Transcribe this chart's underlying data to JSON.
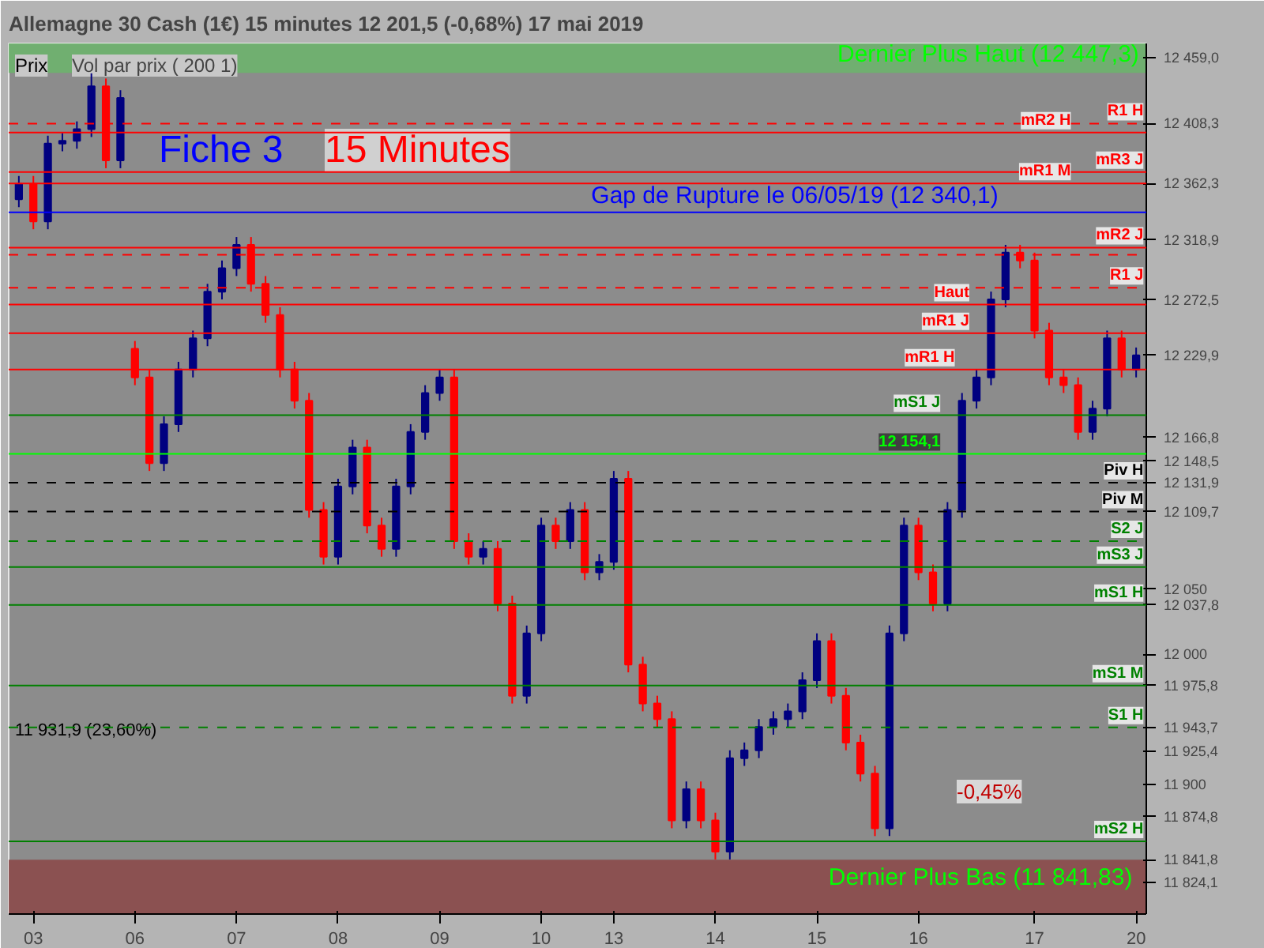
{
  "chart_data": {
    "type": "candlestick",
    "title": "Allemagne 30 Cash (1€)   15 minutes   12 201,5 (-0,68%)   17 mai 2019",
    "colors": [
      "#000080",
      "#ff0000",
      "#000080",
      "#000080",
      "#000080",
      "#000080",
      "#ff0000",
      "#000080",
      "#ff0000",
      "#ff0000",
      "#000080",
      "#000080",
      "#000080",
      "#000080",
      "#000080",
      "#000080",
      "#ff0000",
      "#ff0000",
      "#ff0000",
      "#ff0000",
      "#ff0000",
      "#ff0000",
      "#000080",
      "#000080",
      "#ff0000",
      "#ff0000",
      "#000080",
      "#000080",
      "#000080",
      "#000080",
      "#ff0000",
      "#ff0000",
      "#000080",
      "#ff0000",
      "#ff0000",
      "#000080",
      "#000080",
      "#ff0000",
      "#000080",
      "#ff0000",
      "#000080",
      "#000080",
      "#ff0000",
      "#ff0000",
      "#ff0000",
      "#ff0000",
      "#000080",
      "#ff0000",
      "#ff0000",
      "#000080",
      "#000080",
      "#000080",
      "#000080",
      "#000080",
      "#000080",
      "#000080",
      "#ff0000",
      "#ff0000",
      "#ff0000",
      "#ff0000",
      "#000080",
      "#000080",
      "#ff0000",
      "#ff0000",
      "#000080",
      "#000080",
      "#000080",
      "#000080",
      "#000080",
      "#ff0000",
      "#ff0000",
      "#ff0000",
      "#ff0000",
      "#ff0000",
      "#000080",
      "#000080",
      "#ff0000",
      "#000080"
    ],
    "categories": [
      null,
      "03",
      null,
      null,
      null,
      null,
      null,
      null,
      "06",
      null,
      null,
      null,
      null,
      null,
      null,
      "07",
      null,
      null,
      null,
      null,
      null,
      null,
      "08",
      null,
      null,
      null,
      null,
      null,
      null,
      "09",
      null,
      null,
      null,
      null,
      null,
      null,
      "10",
      null,
      null,
      null,
      null,
      "13",
      null,
      null,
      null,
      null,
      null,
      null,
      "14",
      null,
      null,
      null,
      null,
      null,
      null,
      "15",
      null,
      null,
      null,
      null,
      null,
      null,
      "16",
      null,
      null,
      null,
      null,
      null,
      null,
      null,
      "17",
      null,
      null,
      null,
      null,
      null,
      null,
      "20"
    ],
    "ohlc": [
      [
        12350,
        12368,
        12344,
        12362
      ],
      [
        12362,
        12368,
        12327,
        12333
      ],
      [
        12333,
        12399,
        12327,
        12393
      ],
      [
        12393,
        12401,
        12387,
        12395
      ],
      [
        12395,
        12410,
        12389,
        12404
      ],
      [
        12404,
        12447,
        12398,
        12437
      ],
      [
        12437,
        12443,
        12374,
        12380
      ],
      [
        12380,
        12434,
        12374,
        12428
      ],
      [
        12235,
        12241,
        12207,
        12213
      ],
      [
        12213,
        12219,
        12141,
        12147
      ],
      [
        12147,
        12183,
        12141,
        12177
      ],
      [
        12177,
        12225,
        12171,
        12219
      ],
      [
        12219,
        12249,
        12213,
        12243
      ],
      [
        12243,
        12285,
        12237,
        12279
      ],
      [
        12279,
        12303,
        12273,
        12297
      ],
      [
        12297,
        12321,
        12291,
        12315
      ],
      [
        12315,
        12321,
        12279,
        12285
      ],
      [
        12285,
        12291,
        12255,
        12261
      ],
      [
        12261,
        12267,
        12213,
        12219
      ],
      [
        12219,
        12225,
        12189,
        12195
      ],
      [
        12195,
        12201,
        12105,
        12111
      ],
      [
        12111,
        12117,
        12069,
        12075
      ],
      [
        12075,
        12135,
        12069,
        12129
      ],
      [
        12129,
        12165,
        12123,
        12159
      ],
      [
        12159,
        12165,
        12093,
        12099
      ],
      [
        12099,
        12105,
        12075,
        12081
      ],
      [
        12081,
        12135,
        12075,
        12129
      ],
      [
        12129,
        12177,
        12123,
        12171
      ],
      [
        12171,
        12207,
        12165,
        12201
      ],
      [
        12201,
        12219,
        12195,
        12213
      ],
      [
        12213,
        12219,
        12081,
        12087
      ],
      [
        12087,
        12093,
        12069,
        12075
      ],
      [
        12075,
        12087,
        12069,
        12081
      ],
      [
        12081,
        12087,
        12033,
        12039
      ],
      [
        12039,
        12045,
        11962,
        11968
      ],
      [
        11968,
        12022,
        11962,
        12016
      ],
      [
        12016,
        12105,
        12010,
        12099
      ],
      [
        12099,
        12105,
        12081,
        12087
      ],
      [
        12087,
        12117,
        12081,
        12111
      ],
      [
        12111,
        12117,
        12057,
        12063
      ],
      [
        12063,
        12077,
        12057,
        12071
      ],
      [
        12071,
        12141,
        12065,
        12135
      ],
      [
        12135,
        12141,
        11986,
        11992
      ],
      [
        11992,
        11998,
        11956,
        11962
      ],
      [
        11962,
        11968,
        11944,
        11950
      ],
      [
        11950,
        11956,
        11866,
        11872
      ],
      [
        11872,
        11902,
        11866,
        11896
      ],
      [
        11896,
        11902,
        11866,
        11872
      ],
      [
        11872,
        11878,
        11842,
        11848
      ],
      [
        11848,
        11926,
        11842,
        11920
      ],
      [
        11920,
        11932,
        11914,
        11926
      ],
      [
        11926,
        11950,
        11920,
        11944
      ],
      [
        11944,
        11956,
        11938,
        11950
      ],
      [
        11950,
        11962,
        11944,
        11956
      ],
      [
        11956,
        11986,
        11950,
        11980
      ],
      [
        11980,
        12016,
        11974,
        12010
      ],
      [
        12010,
        12016,
        11962,
        11968
      ],
      [
        11968,
        11974,
        11926,
        11932
      ],
      [
        11932,
        11938,
        11902,
        11908
      ],
      [
        11908,
        11914,
        11860,
        11866
      ],
      [
        11866,
        12022,
        11860,
        12016
      ],
      [
        12016,
        12105,
        12010,
        12099
      ],
      [
        12099,
        12105,
        12057,
        12063
      ],
      [
        12063,
        12069,
        12033,
        12039
      ],
      [
        12039,
        12117,
        12033,
        12111
      ],
      [
        12111,
        12201,
        12105,
        12195
      ],
      [
        12195,
        12219,
        12189,
        12213
      ],
      [
        12213,
        12279,
        12207,
        12273
      ],
      [
        12273,
        12315,
        12267,
        12309
      ],
      [
        12309,
        12315,
        12297,
        12303
      ],
      [
        12303,
        12309,
        12243,
        12249
      ],
      [
        12249,
        12255,
        12207,
        12213
      ],
      [
        12213,
        12219,
        12201,
        12207
      ],
      [
        12207,
        12213,
        12165,
        12171
      ],
      [
        12171,
        12195,
        12165,
        12189
      ],
      [
        12189,
        12249,
        12183,
        12243
      ],
      [
        12243,
        12249,
        12213,
        12219
      ],
      [
        12219,
        12236,
        12213,
        12230
      ]
    ],
    "ylim": [
      11800,
      12470
    ],
    "yticks": [
      {
        "value": 12459.0,
        "label": "12 459,0"
      },
      {
        "value": 12408.3,
        "label": "12 408,3"
      },
      {
        "value": 12362.3,
        "label": "12 362,3"
      },
      {
        "value": 12318.9,
        "label": "12 318,9"
      },
      {
        "value": 12272.5,
        "label": "12 272,5"
      },
      {
        "value": 12229.9,
        "label": "12 229,9"
      },
      {
        "value": 12166.8,
        "label": "12 166,8"
      },
      {
        "value": 12148.5,
        "label": "12 148,5"
      },
      {
        "value": 12131.9,
        "label": "12 131,9"
      },
      {
        "value": 12109.7,
        "label": "12 109,7"
      },
      {
        "value": 12050,
        "label": "12 050"
      },
      {
        "value": 12037.8,
        "label": "12 037,8"
      },
      {
        "value": 12000,
        "label": "12 000"
      },
      {
        "value": 11975.8,
        "label": "11 975,8"
      },
      {
        "value": 11943.7,
        "label": "11 943,7"
      },
      {
        "value": 11925.4,
        "label": "11 925,4"
      },
      {
        "value": 11900,
        "label": "11 900"
      },
      {
        "value": 11874.8,
        "label": "11 874,8"
      },
      {
        "value": 11841.8,
        "label": "11 841,8"
      },
      {
        "value": 11824.1,
        "label": "11 824,1"
      }
    ],
    "bands": [
      {
        "axis": "y",
        "from": 12447.3,
        "to": 12470,
        "label": "Dernier Plus Haut (12 447,3)",
        "color": "#6db36d"
      },
      {
        "axis": "y",
        "from": 11800,
        "to": 11841.83,
        "label": "Dernier Plus Bas  (11 841,83)",
        "color": "#8b4a4a"
      }
    ],
    "ref_lines": [
      {
        "axis": "y",
        "value": 12408.3,
        "label": "R1 H",
        "color": "#ff0000",
        "line_style": "dashed"
      },
      {
        "axis": "y",
        "value": 12401.4,
        "label": "mR2 H",
        "color": "#ff0000",
        "line_style": "solid"
      },
      {
        "axis": "y",
        "value": 12371,
        "label": "mR3 J",
        "color": "#ff0000",
        "line_style": "solid"
      },
      {
        "axis": "y",
        "value": 12362.3,
        "label": "mR1 M",
        "color": "#ff0000",
        "line_style": "solid"
      },
      {
        "axis": "y",
        "value": 12340.1,
        "label": "Gap de Rupture le 06/05/19 (12 340,1)",
        "color": "#0000ff",
        "line_style": "solid"
      },
      {
        "axis": "y",
        "value": 12312.9,
        "label": "mR2 J",
        "color": "#ff0000",
        "line_style": "solid"
      },
      {
        "axis": "y",
        "value": 12307.3,
        "label": null,
        "color": "#ff0000",
        "line_style": "dashed"
      },
      {
        "axis": "y",
        "value": 12282,
        "label": "R1 J",
        "color": "#ff0000",
        "line_style": "dashed"
      },
      {
        "axis": "y",
        "value": 12269,
        "label": "Haut",
        "color": "#ff0000",
        "line_style": "solid"
      },
      {
        "axis": "y",
        "value": 12247,
        "label": "mR1 J",
        "color": "#ff0000",
        "line_style": "solid"
      },
      {
        "axis": "y",
        "value": 12219,
        "label": "mR1 H",
        "color": "#ff0000",
        "line_style": "solid"
      },
      {
        "axis": "y",
        "value": 12184,
        "label": "mS1 J",
        "color": "#008000",
        "line_style": "solid"
      },
      {
        "axis": "y",
        "value": 12154.1,
        "label": "12 154,1",
        "color": "#00ff00",
        "line_style": "solid"
      },
      {
        "axis": "y",
        "value": 12131.9,
        "label": "Piv H",
        "color": "#000000",
        "line_style": "dashed"
      },
      {
        "axis": "y",
        "value": 12109.7,
        "label": "Piv M",
        "color": "#000000",
        "line_style": "dashed"
      },
      {
        "axis": "y",
        "value": 12087,
        "label": "S2 J",
        "color": "#008000",
        "line_style": "dashed"
      },
      {
        "axis": "y",
        "value": 12067,
        "label": "mS3 J",
        "color": "#008000",
        "line_style": "solid"
      },
      {
        "axis": "y",
        "value": 12037.8,
        "label": "mS1 H",
        "color": "#008000",
        "line_style": "solid"
      },
      {
        "axis": "y",
        "value": 11975.8,
        "label": "mS1 M",
        "color": "#008000",
        "line_style": "solid"
      },
      {
        "axis": "y",
        "value": 11943.7,
        "label": "S1 H",
        "color": "#008000",
        "line_style": "dashed"
      },
      {
        "axis": "y",
        "value": 11856.0,
        "label": "mS2 H",
        "color": "#008000",
        "line_style": "solid"
      }
    ],
    "annotations": [
      "Prix",
      "Vol par prix ( 200 1)",
      "Fiche 3",
      "15 Minutes",
      "-0,45%",
      "11 931,9 (23,60%)"
    ],
    "grid": false
  }
}
